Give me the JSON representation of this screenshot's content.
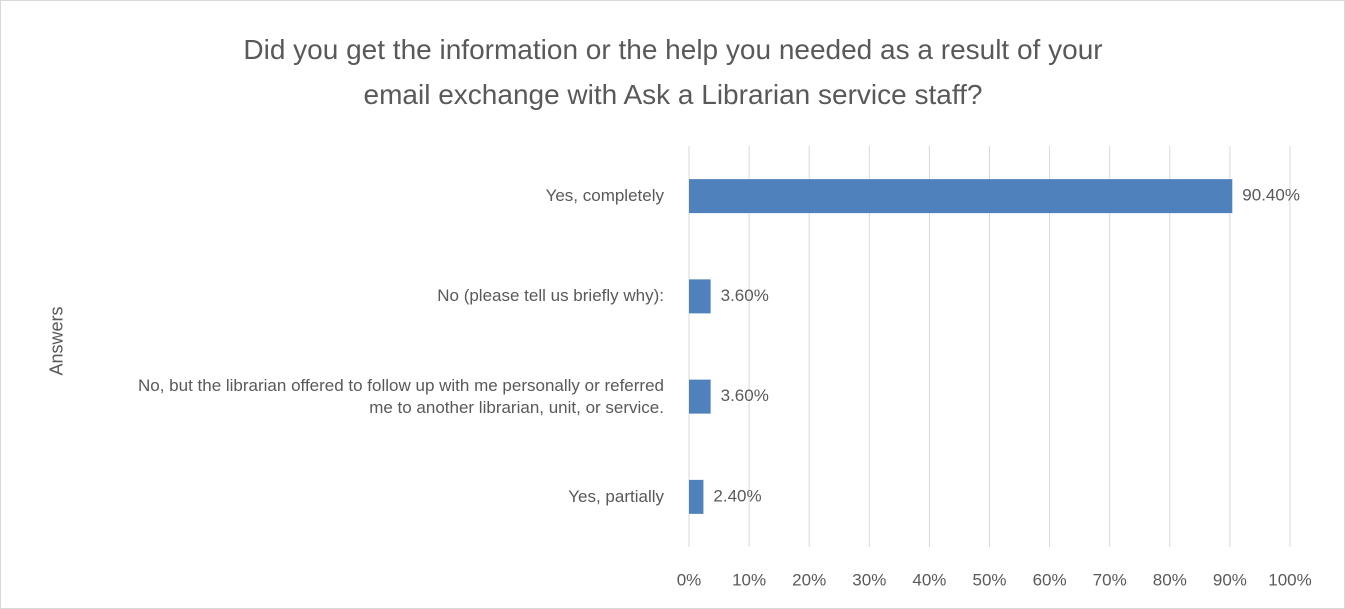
{
  "chart_data": {
    "type": "bar",
    "orientation": "horizontal",
    "title": "Did you get the information or the help you needed as a result of your email exchange with Ask a Librarian service staff?",
    "y_label": "Answers",
    "categories": [
      "Yes, completely",
      "No (please tell us briefly why):",
      "No, but the librarian offered to follow up with me personally or referred me to another librarian, unit, or service.",
      "Yes, partially"
    ],
    "values": [
      90.4,
      3.6,
      3.6,
      2.4
    ],
    "value_labels": [
      "90.40%",
      "3.60%",
      "3.60%",
      "2.40%"
    ],
    "color": "#4f81bd",
    "xlim": [
      0,
      100
    ],
    "xticks": [
      {
        "value": 0,
        "label": "0%"
      },
      {
        "value": 10,
        "label": "10%"
      },
      {
        "value": 20,
        "label": "20%"
      },
      {
        "value": 30,
        "label": "30%"
      },
      {
        "value": 40,
        "label": "40%"
      },
      {
        "value": 50,
        "label": "50%"
      },
      {
        "value": 60,
        "label": "60%"
      },
      {
        "value": 70,
        "label": "70%"
      },
      {
        "value": 80,
        "label": "80%"
      },
      {
        "value": 90,
        "label": "90%"
      },
      {
        "value": 100,
        "label": "100%"
      }
    ],
    "grid": true
  }
}
